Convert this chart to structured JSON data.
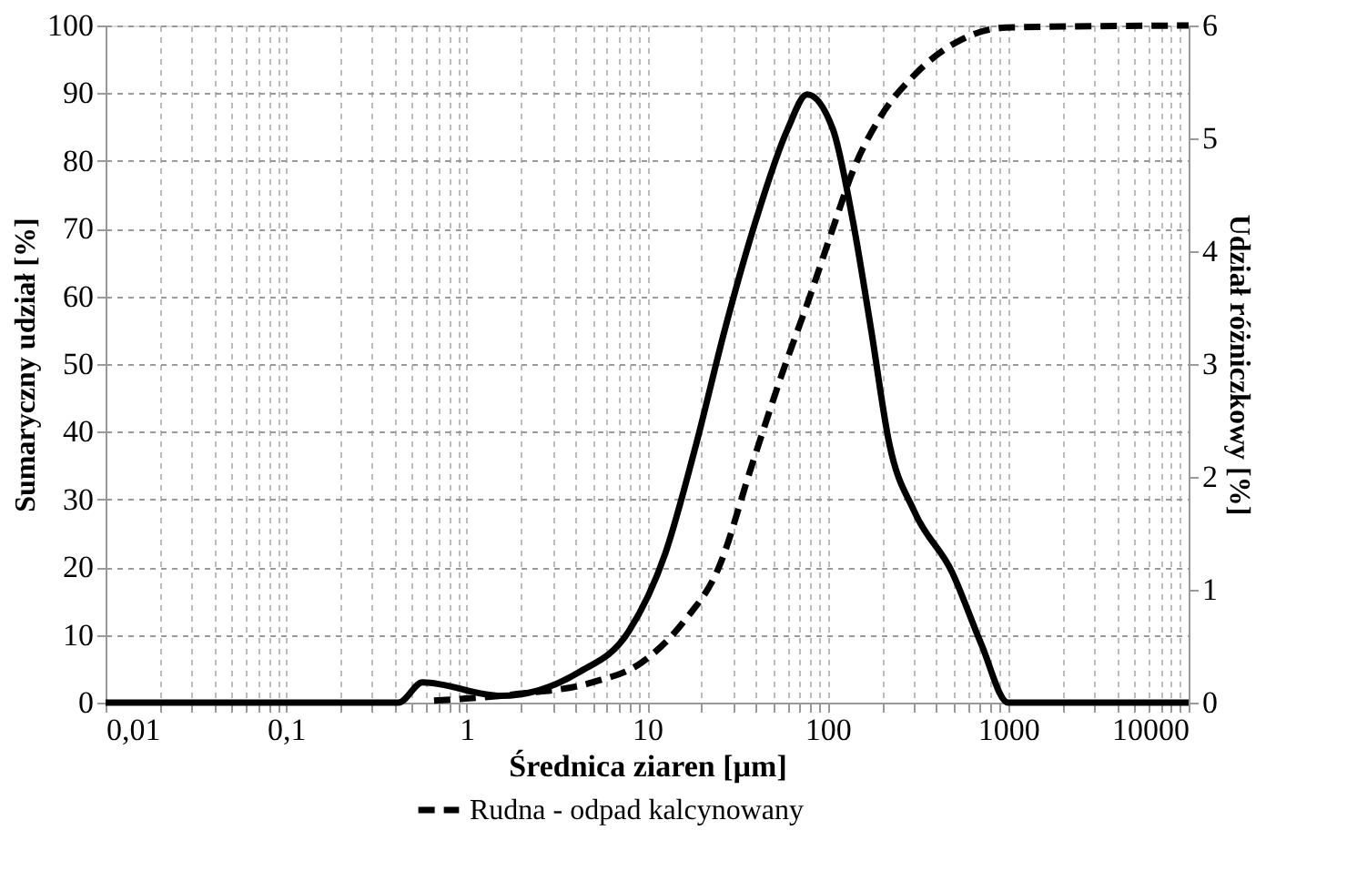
{
  "chart_data": {
    "type": "line",
    "xlabel": "Średnica ziaren [µm]",
    "ylabel": "Sumaryczny udział [%]",
    "y2label": "Udział  różniczkowy [%]",
    "log": "x",
    "grid": true,
    "legend": "bottom",
    "marker": "none",
    "xlim": [
      0.01,
      10000
    ],
    "xticks": [
      {
        "value": 0.01,
        "label": "0,01"
      },
      {
        "value": 0.02,
        "label": null
      },
      {
        "value": 0.03,
        "label": null
      },
      {
        "value": 0.04,
        "label": null
      },
      {
        "value": 0.05,
        "label": null
      },
      {
        "value": 0.06,
        "label": null
      },
      {
        "value": 0.07,
        "label": null
      },
      {
        "value": 0.08,
        "label": null
      },
      {
        "value": 0.09,
        "label": null
      },
      {
        "value": 0.1,
        "label": "0,1"
      },
      {
        "value": 0.2,
        "label": null
      },
      {
        "value": 0.3,
        "label": null
      },
      {
        "value": 0.4,
        "label": null
      },
      {
        "value": 0.5,
        "label": null
      },
      {
        "value": 0.6,
        "label": null
      },
      {
        "value": 0.7,
        "label": null
      },
      {
        "value": 0.8,
        "label": null
      },
      {
        "value": 0.9,
        "label": null
      },
      1,
      {
        "value": 2,
        "label": null
      },
      {
        "value": 3,
        "label": null
      },
      {
        "value": 4,
        "label": null
      },
      {
        "value": 5,
        "label": null
      },
      {
        "value": 6,
        "label": null
      },
      {
        "value": 7,
        "label": null
      },
      {
        "value": 8,
        "label": null
      },
      {
        "value": 9,
        "label": null
      },
      10,
      {
        "value": 20,
        "label": null
      },
      {
        "value": 30,
        "label": null
      },
      {
        "value": 40,
        "label": null
      },
      {
        "value": 50,
        "label": null
      },
      {
        "value": 60,
        "label": null
      },
      {
        "value": 70,
        "label": null
      },
      {
        "value": 80,
        "label": null
      },
      {
        "value": 90,
        "label": null
      },
      100,
      {
        "value": 200,
        "label": null
      },
      {
        "value": 300,
        "label": null
      },
      {
        "value": 400,
        "label": null
      },
      {
        "value": 500,
        "label": null
      },
      {
        "value": 600,
        "label": null
      },
      {
        "value": 700,
        "label": null
      },
      {
        "value": 800,
        "label": null
      },
      {
        "value": 900,
        "label": null
      },
      1000,
      {
        "value": 2000,
        "label": null
      },
      {
        "value": 3000,
        "label": null
      },
      {
        "value": 4000,
        "label": null
      },
      {
        "value": 5000,
        "label": null
      },
      {
        "value": 6000,
        "label": null
      },
      {
        "value": 7000,
        "label": null
      },
      {
        "value": 8000,
        "label": null
      },
      {
        "value": 9000,
        "label": null
      },
      10000
    ],
    "ylim": [
      0,
      100
    ],
    "yticks": [
      0,
      10,
      20,
      30,
      40,
      50,
      60,
      70,
      80,
      90,
      100
    ],
    "y2lim": [
      0,
      6
    ],
    "y2ticks": [
      0,
      1,
      2,
      3,
      4,
      5,
      6
    ],
    "series": [
      {
        "name": "Rudna - odpad kalcynowany",
        "color": "#000000",
        "line_style": "dashed",
        "x": [
          0.66,
          1.95,
          5,
          9.3,
          16,
          25,
          38,
          55,
          81,
          110,
          138,
          191,
          303,
          560,
          980,
          10000
        ],
        "values": [
          0.3,
          1.3,
          3,
          5.9,
          12,
          20,
          35,
          48,
          60.5,
          71,
          78.5,
          86,
          92.7,
          98,
          99.7,
          100
        ]
      },
      {
        "color": "#000000",
        "line_style": "solid",
        "axis": "y2",
        "x": [
          0.01,
          0.42,
          0.57,
          1.55,
          4.2,
          7.9,
          12.6,
          18.7,
          27,
          40,
          60,
          77,
          107,
          138,
          174,
          220,
          303,
          488,
          710,
          1000,
          10000
        ],
        "values": [
          0,
          0,
          0.18,
          0.06,
          0.27,
          0.63,
          1.32,
          2.29,
          3.31,
          4.27,
          5.08,
          5.39,
          5.08,
          4.27,
          3.31,
          2.29,
          1.69,
          1.16,
          0.52,
          0,
          0
        ]
      }
    ]
  }
}
